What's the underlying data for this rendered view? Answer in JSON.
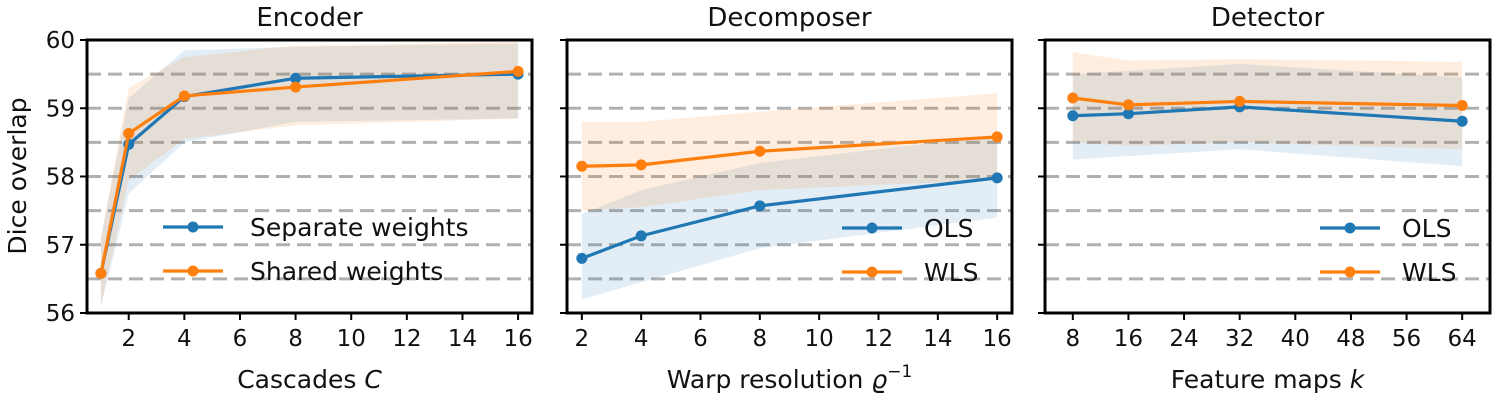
{
  "chart_data": [
    {
      "type": "line",
      "title": "Encoder",
      "xlabel": "Cascades ",
      "xlabel_var": "C",
      "xlabel_sup": "",
      "ylabel": "Dice overlap",
      "ylim": [
        56,
        60
      ],
      "yticks": [
        56,
        57,
        58,
        59,
        60
      ],
      "ytick_labels": [
        "56",
        "57",
        "58",
        "59",
        "60"
      ],
      "xlim": [
        0.5,
        16.5
      ],
      "xticks": [
        2,
        4,
        6,
        8,
        10,
        12,
        14,
        16
      ],
      "xtick_labels": [
        "2",
        "4",
        "6",
        "8",
        "10",
        "12",
        "14",
        "16"
      ],
      "grid": "dashed horizontal at 0.5 steps",
      "legend_position": "lower-right",
      "series": [
        {
          "name": "Separate weights",
          "color": "#1f77b4",
          "x": [
            1,
            2,
            4,
            8,
            16
          ],
          "y": [
            56.58,
            58.47,
            59.17,
            59.44,
            59.5
          ],
          "lower": [
            56.1,
            57.75,
            58.5,
            58.8,
            58.85
          ],
          "upper": [
            57.1,
            59.15,
            59.85,
            59.9,
            59.95
          ]
        },
        {
          "name": "Shared weights",
          "color": "#ff7f0e",
          "x": [
            1,
            2,
            4,
            8,
            16
          ],
          "y": [
            56.58,
            58.63,
            59.18,
            59.31,
            59.54
          ],
          "lower": [
            56.1,
            57.95,
            58.55,
            58.75,
            58.85
          ],
          "upper": [
            57.1,
            59.3,
            59.75,
            59.92,
            59.97
          ]
        }
      ]
    },
    {
      "type": "line",
      "title": "Decomposer",
      "xlabel": "Warp resolution ",
      "xlabel_var": "ϱ",
      "xlabel_sup": "−1",
      "ylim": [
        56,
        60
      ],
      "xlim": [
        1.5,
        16.5
      ],
      "xticks": [
        2,
        4,
        6,
        8,
        10,
        12,
        14,
        16
      ],
      "xtick_labels": [
        "2",
        "4",
        "6",
        "8",
        "10",
        "12",
        "14",
        "16"
      ],
      "grid": "dashed horizontal at 0.5 steps",
      "legend_position": "lower-right",
      "series": [
        {
          "name": "OLS",
          "color": "#1f77b4",
          "x": [
            2,
            4,
            8,
            16
          ],
          "y": [
            56.8,
            57.13,
            57.57,
            57.98
          ],
          "lower": [
            56.2,
            56.45,
            56.95,
            57.4
          ],
          "upper": [
            57.45,
            57.8,
            58.2,
            58.6
          ]
        },
        {
          "name": "WLS",
          "color": "#ff7f0e",
          "x": [
            2,
            4,
            8,
            16
          ],
          "y": [
            58.15,
            58.17,
            58.37,
            58.58
          ],
          "lower": [
            57.5,
            57.55,
            57.8,
            57.95
          ],
          "upper": [
            58.8,
            58.8,
            58.95,
            59.22
          ]
        }
      ]
    },
    {
      "type": "line",
      "title": "Detector",
      "xlabel": "Feature maps ",
      "xlabel_var": "k",
      "xlabel_sup": "",
      "ylim": [
        56,
        60
      ],
      "xlim": [
        4,
        68
      ],
      "xticks": [
        8,
        16,
        24,
        32,
        40,
        48,
        56,
        64
      ],
      "xtick_labels": [
        "8",
        "16",
        "24",
        "32",
        "40",
        "48",
        "56",
        "64"
      ],
      "grid": "dashed horizontal at 0.5 steps",
      "legend_position": "lower-right",
      "series": [
        {
          "name": "OLS",
          "color": "#1f77b4",
          "x": [
            8,
            16,
            32,
            64
          ],
          "y": [
            58.89,
            58.92,
            59.02,
            58.81
          ],
          "lower": [
            58.25,
            58.3,
            58.4,
            58.15
          ],
          "upper": [
            59.5,
            59.55,
            59.65,
            59.45
          ]
        },
        {
          "name": "WLS",
          "color": "#ff7f0e",
          "x": [
            8,
            16,
            32,
            64
          ],
          "y": [
            59.15,
            59.05,
            59.1,
            59.04
          ],
          "lower": [
            58.5,
            58.45,
            58.5,
            58.4
          ],
          "upper": [
            59.82,
            59.7,
            59.72,
            59.68
          ]
        }
      ]
    }
  ]
}
